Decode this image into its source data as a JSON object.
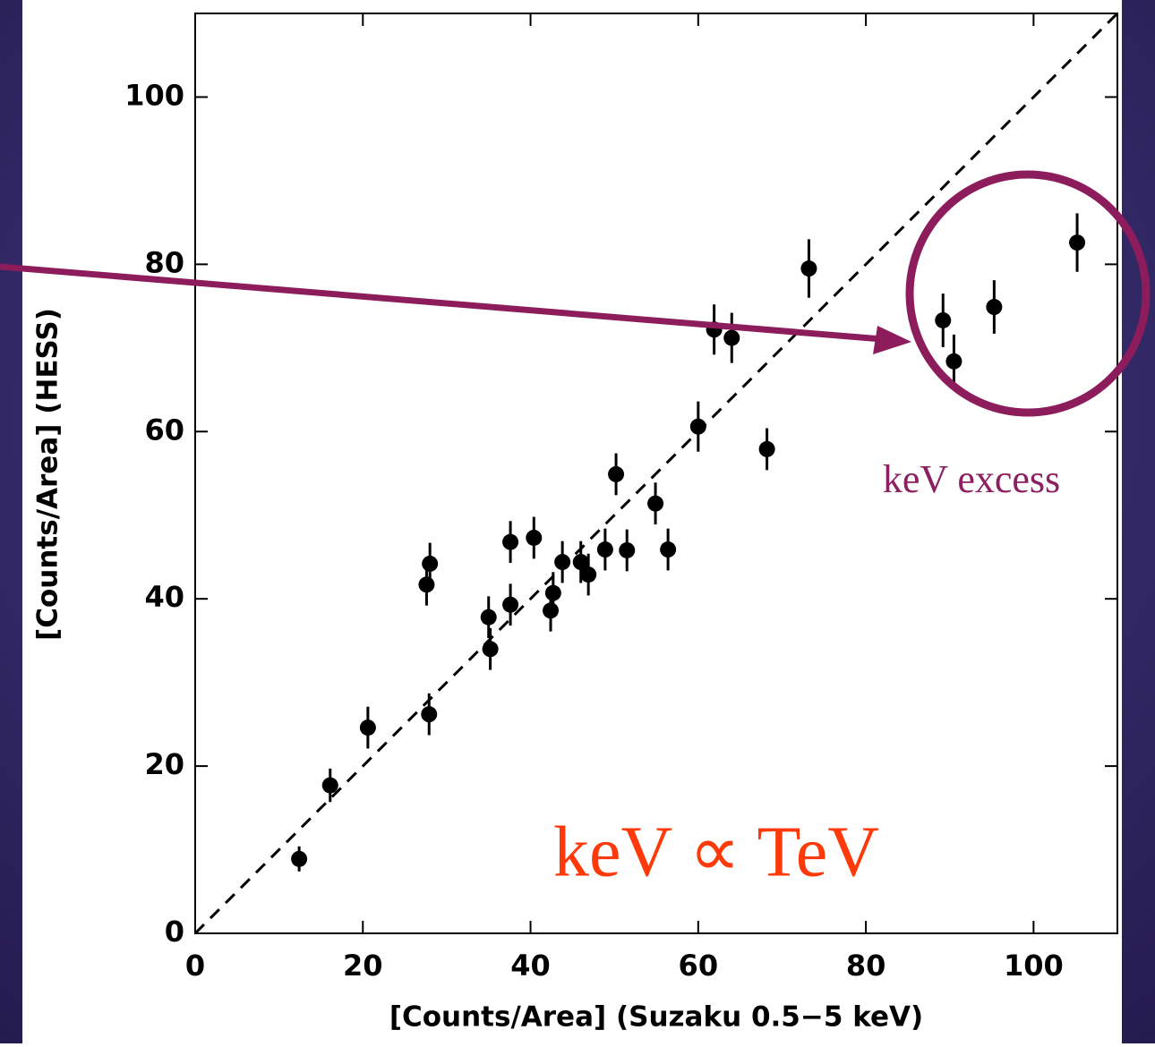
{
  "chart_data": {
    "type": "scatter",
    "x_label": "[Counts/Area] (Suzaku 0.5−5 keV)",
    "y_label": "[Counts/Area] (HESS)",
    "annotations": [
      "keV excess",
      "keV ∝ TeV"
    ],
    "xlim": [
      0,
      110
    ],
    "ylim": [
      0,
      110
    ],
    "xticks": [
      0,
      20,
      40,
      60,
      80,
      100
    ],
    "yticks": [
      0,
      20,
      40,
      60,
      80,
      100
    ],
    "diagonal": true,
    "color": "#000000",
    "x": [
      12.4,
      16.1,
      20.6,
      27.9,
      27.6,
      28.0,
      35.0,
      35.2,
      37.6,
      37.6,
      40.4,
      42.4,
      42.7,
      43.8,
      46.0,
      46.9,
      48.9,
      50.2,
      51.5,
      54.9,
      56.4,
      60.0,
      61.9,
      64.0,
      68.2,
      73.2,
      89.2,
      90.5,
      95.3,
      105.2
    ],
    "values": [
      8.9,
      17.7,
      24.6,
      26.2,
      41.7,
      44.2,
      37.8,
      34.0,
      39.3,
      46.8,
      47.3,
      38.6,
      40.7,
      44.4,
      44.4,
      42.9,
      45.9,
      54.9,
      45.8,
      51.4,
      45.9,
      60.6,
      72.2,
      71.2,
      57.9,
      79.5,
      73.3,
      68.4,
      74.9,
      82.6
    ],
    "errors": [
      1.5,
      2,
      2.5,
      2.5,
      2.5,
      2.5,
      2.5,
      2.5,
      2.5,
      2.5,
      2.5,
      2.5,
      2.5,
      2.5,
      2.5,
      2.5,
      2.5,
      2.5,
      2.5,
      2.5,
      2.5,
      3,
      3,
      3,
      2.5,
      3.5,
      3.2,
      3.2,
      3.2,
      3.5
    ]
  }
}
